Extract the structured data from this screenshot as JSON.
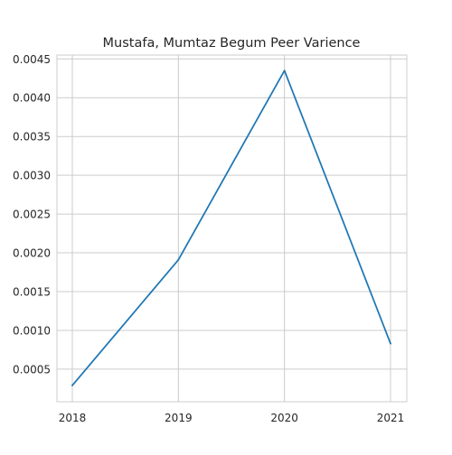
{
  "chart_data": {
    "type": "line",
    "title": "Mustafa, Mumtaz Begum Peer Varience",
    "xlabel": "",
    "ylabel": "",
    "x": [
      "2018",
      "2019",
      "2020",
      "2021"
    ],
    "series": [
      {
        "values": [
          0.00029,
          0.00191,
          0.00435,
          0.00083
        ]
      }
    ],
    "x_ticks": [
      "2018",
      "2019",
      "2020",
      "2021"
    ],
    "y_ticks": [
      "0.0005",
      "0.0010",
      "0.0015",
      "0.0020",
      "0.0025",
      "0.0030",
      "0.0035",
      "0.0040",
      "0.0045"
    ],
    "ylim": [
      8e-05,
      0.00455
    ],
    "grid": true,
    "line_color": "#1f77b4",
    "grid_color": "#cccccc",
    "legend": "none"
  }
}
